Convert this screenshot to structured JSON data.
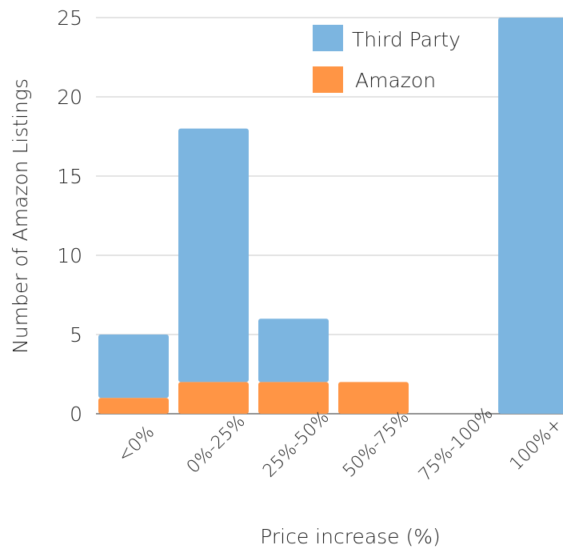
{
  "chart_data": {
    "type": "bar",
    "stacked": true,
    "xlabel": "Price increase (%)",
    "ylabel": "Number of Amazon Listings",
    "categories": [
      "<0%",
      "0%-25%",
      "25%-50%",
      "50%-75%",
      "75%-100%",
      "100%+"
    ],
    "series": [
      {
        "name": "Amazon",
        "values": [
          1,
          2,
          2,
          2,
          0,
          0
        ]
      },
      {
        "name": "Third Party",
        "values": [
          4,
          16,
          4,
          0,
          0,
          25
        ]
      }
    ],
    "ylim": [
      0,
      25
    ],
    "yticks": [
      0,
      5,
      10,
      15,
      20,
      25
    ],
    "grid": true,
    "legend": "top-right",
    "colors": {
      "Third Party": "#7cb5e0",
      "Amazon": "#ff9545",
      "grid": "#c8c8c8",
      "axis": "#555555"
    }
  }
}
